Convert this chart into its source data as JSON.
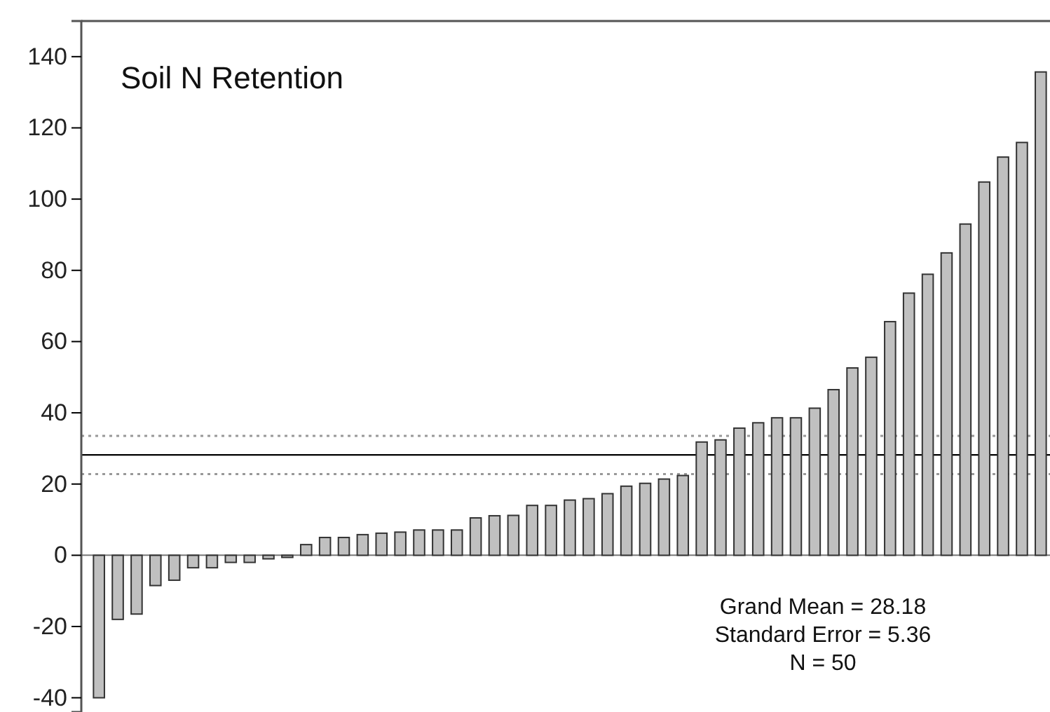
{
  "chart_data": {
    "type": "bar",
    "title": "Soil N Retention",
    "categories": [
      null,
      null,
      null,
      null,
      null,
      null,
      null,
      null,
      null,
      null,
      null,
      null,
      null,
      null,
      null,
      null,
      null,
      null,
      null,
      null,
      null,
      null,
      null,
      null,
      null,
      null,
      null,
      null,
      null,
      null,
      null,
      null,
      null,
      null,
      null,
      null,
      null,
      null,
      null,
      null,
      null,
      null,
      null,
      null,
      null,
      null,
      null,
      null,
      null,
      null,
      null
    ],
    "values": [
      -40,
      -18,
      -16.5,
      -8.5,
      -7,
      -3.5,
      -3.5,
      -2,
      -2,
      -1,
      -0.6,
      3,
      5,
      5,
      5.8,
      6.2,
      6.5,
      7.1,
      7.1,
      7.1,
      10.5,
      11.1,
      11.2,
      14,
      14,
      15.5,
      15.9,
      17.3,
      19.4,
      20.2,
      21.4,
      22.4,
      31.8,
      32.4,
      35.7,
      37.2,
      38.6,
      38.6,
      41.3,
      46.5,
      52.6,
      55.6,
      65.6,
      73.6,
      78.9,
      84.9,
      93,
      104.8,
      111.8,
      115.9,
      135.7
    ],
    "color": "#c0c0c0",
    "ylim": [
      -44,
      150
    ],
    "yticks": [
      -40,
      -20,
      0,
      20,
      40,
      60,
      80,
      100,
      120,
      140
    ],
    "ref_lines": [
      {
        "axis": "y",
        "value": 28.18,
        "color": "#000000",
        "line_style": "solid"
      },
      {
        "axis": "y",
        "value": 33.54,
        "color": "#999999",
        "line_style": "dotted"
      },
      {
        "axis": "y",
        "value": 22.82,
        "color": "#999999",
        "line_style": "dotted"
      }
    ],
    "annotations": [
      "Grand Mean = 28.18",
      "Standard Error = 5.36",
      "N = 50"
    ],
    "tick_labels": "y"
  }
}
